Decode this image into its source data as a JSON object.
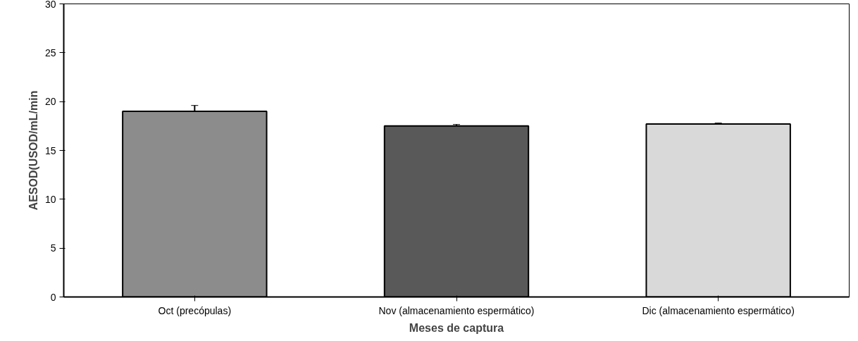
{
  "chart_data": {
    "type": "bar",
    "xlabel": "Meses de captura",
    "ylabel": "AESOD(USOD/mL/min",
    "categories": [
      "Oct (precópulas)",
      "Nov (almacenamiento espermático)",
      "Dic (almacenamiento espermático)"
    ],
    "values": [
      19.0,
      17.5,
      17.7
    ],
    "errors": [
      0.6,
      0.15,
      0.1
    ],
    "colors": [
      "#8c8c8c",
      "#595959",
      "#d9d9d9"
    ],
    "ylim": [
      0,
      30
    ],
    "yticks": [
      0,
      5,
      10,
      15,
      20,
      25,
      30
    ],
    "grid": false
  }
}
